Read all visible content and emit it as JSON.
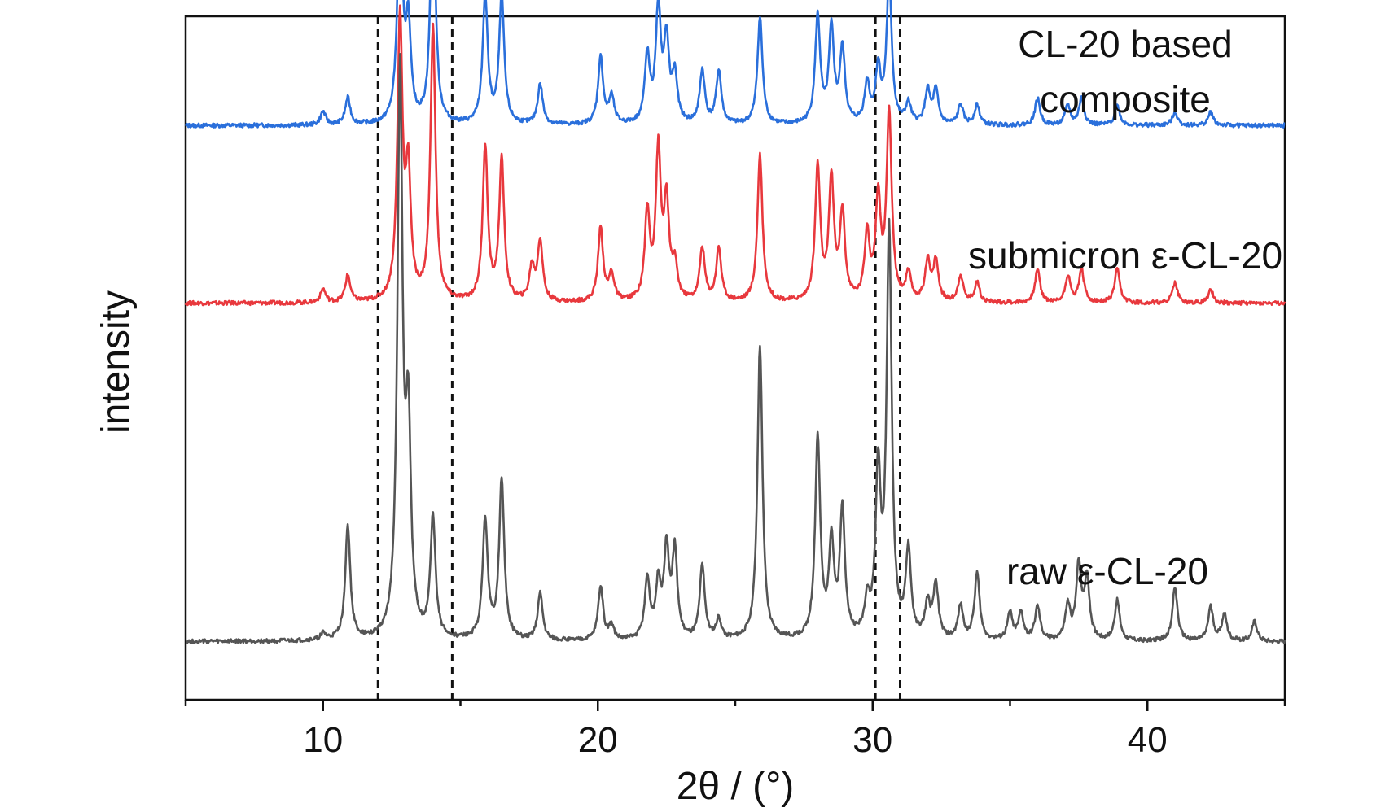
{
  "chart_data": {
    "type": "line",
    "title": "",
    "xlabel": "2θ / (°)",
    "ylabel": "intensity",
    "xlim": [
      5,
      45
    ],
    "x_ticks": [
      10,
      20,
      30,
      40
    ],
    "x_tick_labels": [
      "10",
      "20",
      "30",
      "40"
    ],
    "y_ticks_shown": false,
    "grid": false,
    "reference_lines_x": [
      12.0,
      14.7,
      30.1,
      31.0
    ],
    "series": [
      {
        "name": "CL-20 based composite",
        "label_lines": [
          "CL-20 based",
          "composite"
        ],
        "color": "#2a6fdb",
        "baseline": 0.84,
        "peaks": [
          {
            "x": 10.0,
            "h": 0.02
          },
          {
            "x": 10.9,
            "h": 0.04
          },
          {
            "x": 12.8,
            "h": 0.33
          },
          {
            "x": 13.1,
            "h": 0.14
          },
          {
            "x": 14.0,
            "h": 0.35
          },
          {
            "x": 15.9,
            "h": 0.19
          },
          {
            "x": 16.5,
            "h": 0.19
          },
          {
            "x": 17.9,
            "h": 0.06
          },
          {
            "x": 20.1,
            "h": 0.1
          },
          {
            "x": 20.5,
            "h": 0.04
          },
          {
            "x": 21.8,
            "h": 0.1
          },
          {
            "x": 22.2,
            "h": 0.17
          },
          {
            "x": 22.5,
            "h": 0.12
          },
          {
            "x": 22.8,
            "h": 0.07
          },
          {
            "x": 23.8,
            "h": 0.08
          },
          {
            "x": 24.4,
            "h": 0.08
          },
          {
            "x": 25.9,
            "h": 0.16
          },
          {
            "x": 28.0,
            "h": 0.16
          },
          {
            "x": 28.5,
            "h": 0.14
          },
          {
            "x": 28.9,
            "h": 0.11
          },
          {
            "x": 29.8,
            "h": 0.06
          },
          {
            "x": 30.2,
            "h": 0.08
          },
          {
            "x": 30.6,
            "h": 0.22
          },
          {
            "x": 31.3,
            "h": 0.03
          },
          {
            "x": 32.0,
            "h": 0.05
          },
          {
            "x": 32.3,
            "h": 0.05
          },
          {
            "x": 33.2,
            "h": 0.03
          },
          {
            "x": 33.8,
            "h": 0.03
          },
          {
            "x": 36.0,
            "h": 0.04
          },
          {
            "x": 37.1,
            "h": 0.03
          },
          {
            "x": 37.6,
            "h": 0.04
          },
          {
            "x": 38.9,
            "h": 0.03
          },
          {
            "x": 41.0,
            "h": 0.02
          },
          {
            "x": 42.3,
            "h": 0.02
          }
        ]
      },
      {
        "name": "submicron ε-CL-20",
        "label_lines": [
          "submicron ε-CL-20"
        ],
        "color": "#e8383d",
        "baseline": 0.58,
        "peaks": [
          {
            "x": 10.0,
            "h": 0.02
          },
          {
            "x": 10.9,
            "h": 0.04
          },
          {
            "x": 12.8,
            "h": 0.42
          },
          {
            "x": 13.1,
            "h": 0.18
          },
          {
            "x": 14.0,
            "h": 0.41
          },
          {
            "x": 15.9,
            "h": 0.23
          },
          {
            "x": 16.5,
            "h": 0.21
          },
          {
            "x": 17.6,
            "h": 0.05
          },
          {
            "x": 17.9,
            "h": 0.09
          },
          {
            "x": 20.1,
            "h": 0.11
          },
          {
            "x": 20.5,
            "h": 0.04
          },
          {
            "x": 21.8,
            "h": 0.13
          },
          {
            "x": 22.2,
            "h": 0.22
          },
          {
            "x": 22.5,
            "h": 0.14
          },
          {
            "x": 22.8,
            "h": 0.05
          },
          {
            "x": 23.8,
            "h": 0.08
          },
          {
            "x": 24.4,
            "h": 0.08
          },
          {
            "x": 25.9,
            "h": 0.22
          },
          {
            "x": 28.0,
            "h": 0.2
          },
          {
            "x": 28.5,
            "h": 0.18
          },
          {
            "x": 28.9,
            "h": 0.13
          },
          {
            "x": 29.8,
            "h": 0.1
          },
          {
            "x": 30.2,
            "h": 0.15
          },
          {
            "x": 30.6,
            "h": 0.28
          },
          {
            "x": 31.3,
            "h": 0.04
          },
          {
            "x": 32.0,
            "h": 0.06
          },
          {
            "x": 32.3,
            "h": 0.06
          },
          {
            "x": 33.2,
            "h": 0.04
          },
          {
            "x": 33.8,
            "h": 0.03
          },
          {
            "x": 36.0,
            "h": 0.05
          },
          {
            "x": 37.1,
            "h": 0.04
          },
          {
            "x": 37.6,
            "h": 0.05
          },
          {
            "x": 38.9,
            "h": 0.05
          },
          {
            "x": 41.0,
            "h": 0.03
          },
          {
            "x": 42.3,
            "h": 0.02
          }
        ]
      },
      {
        "name": "raw ε-CL-20",
        "label_lines": [
          "raw ε-CL-20"
        ],
        "color": "#555555",
        "baseline": 0.085,
        "peaks": [
          {
            "x": 10.0,
            "h": 0.01
          },
          {
            "x": 10.9,
            "h": 0.17
          },
          {
            "x": 12.8,
            "h": 0.84
          },
          {
            "x": 13.1,
            "h": 0.3
          },
          {
            "x": 14.0,
            "h": 0.18
          },
          {
            "x": 15.9,
            "h": 0.18
          },
          {
            "x": 16.5,
            "h": 0.24
          },
          {
            "x": 17.9,
            "h": 0.07
          },
          {
            "x": 20.1,
            "h": 0.08
          },
          {
            "x": 20.5,
            "h": 0.02
          },
          {
            "x": 21.8,
            "h": 0.09
          },
          {
            "x": 22.2,
            "h": 0.08
          },
          {
            "x": 22.5,
            "h": 0.13
          },
          {
            "x": 22.8,
            "h": 0.13
          },
          {
            "x": 23.8,
            "h": 0.11
          },
          {
            "x": 24.4,
            "h": 0.03
          },
          {
            "x": 25.9,
            "h": 0.44
          },
          {
            "x": 28.0,
            "h": 0.3
          },
          {
            "x": 28.5,
            "h": 0.14
          },
          {
            "x": 28.9,
            "h": 0.19
          },
          {
            "x": 29.8,
            "h": 0.05
          },
          {
            "x": 30.2,
            "h": 0.24
          },
          {
            "x": 30.6,
            "h": 0.61
          },
          {
            "x": 31.3,
            "h": 0.13
          },
          {
            "x": 32.0,
            "h": 0.05
          },
          {
            "x": 32.3,
            "h": 0.08
          },
          {
            "x": 33.2,
            "h": 0.05
          },
          {
            "x": 33.8,
            "h": 0.1
          },
          {
            "x": 35.0,
            "h": 0.04
          },
          {
            "x": 35.4,
            "h": 0.04
          },
          {
            "x": 36.0,
            "h": 0.05
          },
          {
            "x": 37.1,
            "h": 0.05
          },
          {
            "x": 37.5,
            "h": 0.11
          },
          {
            "x": 37.8,
            "h": 0.09
          },
          {
            "x": 38.9,
            "h": 0.06
          },
          {
            "x": 41.0,
            "h": 0.08
          },
          {
            "x": 42.3,
            "h": 0.05
          },
          {
            "x": 42.8,
            "h": 0.04
          },
          {
            "x": 43.9,
            "h": 0.03
          }
        ]
      }
    ]
  }
}
